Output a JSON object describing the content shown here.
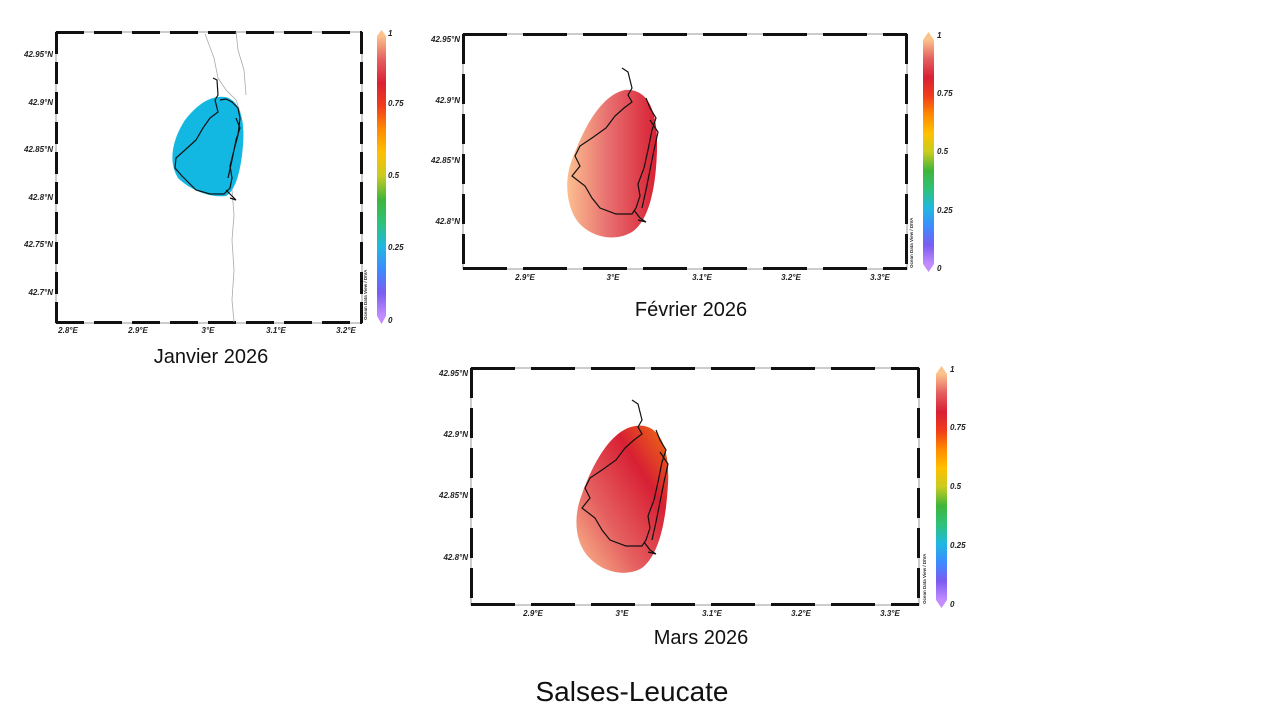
{
  "title": "Salses-Leucate",
  "colorbar": {
    "ticks": [
      "0",
      "0.25",
      "0.5",
      "0.75",
      "1"
    ],
    "credit": "Ocean Data View / DIVA",
    "stops": [
      "#c28cff",
      "#7b5cf0",
      "#3d8bff",
      "#20b8e0",
      "#2ec27a",
      "#3fb53a",
      "#c8cc20",
      "#ffc000",
      "#ff8a00",
      "#f03c1c",
      "#d82034",
      "#e56060",
      "#fbc28c"
    ]
  },
  "panels": [
    {
      "id": "janvier",
      "caption": "Janvier 2026",
      "lon_ticks": [
        "2.8°E",
        "2.9°E",
        "3°E",
        "3.1°E",
        "3.2°E"
      ],
      "lat_ticks": [
        "42.95°N",
        "42.9°N",
        "42.85°N",
        "42.8°N",
        "42.75°N",
        "42.7°N"
      ],
      "fill": "uniform-cyan",
      "fill_color": "#12b8e2"
    },
    {
      "id": "fevrier",
      "caption": "Février 2026",
      "lon_ticks": [
        "2.9°E",
        "3°E",
        "3.1°E",
        "3.2°E",
        "3.3°E"
      ],
      "lat_ticks": [
        "42.95°N",
        "42.9°N",
        "42.85°N",
        "42.8°N"
      ],
      "fill": "gradient-peach-to-red"
    },
    {
      "id": "mars",
      "caption": "Mars 2026",
      "lon_ticks": [
        "2.9°E",
        "3°E",
        "3.1°E",
        "3.2°E",
        "3.3°E"
      ],
      "lat_ticks": [
        "42.95°N",
        "42.9°N",
        "42.85°N",
        "42.8°N"
      ],
      "fill": "gradient-peach-red-orange"
    }
  ]
}
